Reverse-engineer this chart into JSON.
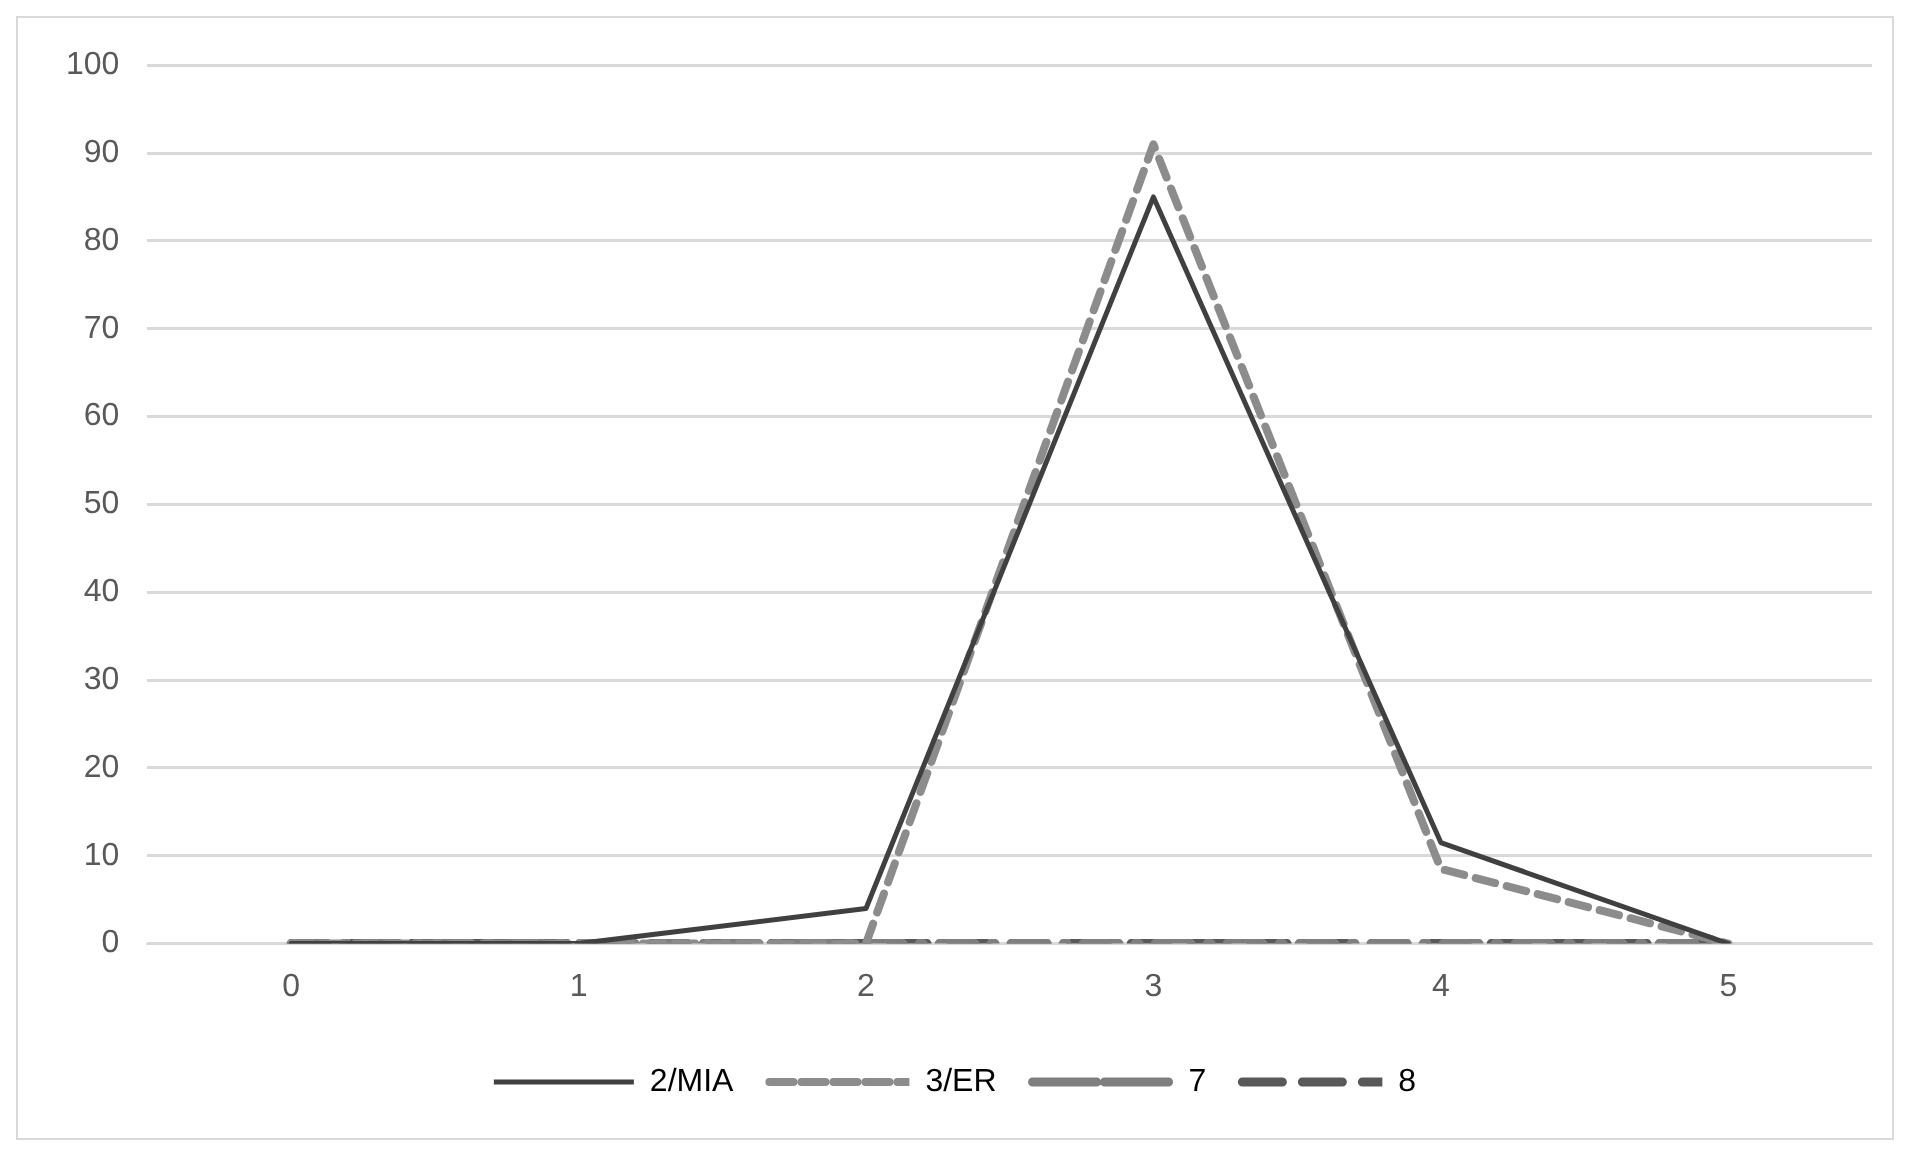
{
  "chart_data": {
    "type": "line",
    "categories": [
      "0",
      "1",
      "2",
      "3",
      "4",
      "5"
    ],
    "series": [
      {
        "name": "2/MIA",
        "color": "#404040",
        "line_style": "solid",
        "values": [
          0,
          0,
          4,
          85,
          11.5,
          0
        ]
      },
      {
        "name": "3/ER",
        "color": "#8c8c8c",
        "line_style": "dashed",
        "values": [
          0,
          0,
          0,
          91,
          8.5,
          0
        ]
      },
      {
        "name": "7",
        "color": "#7f7f7f",
        "line_style": "dashdot",
        "values": [
          0,
          0,
          0,
          0,
          0,
          0
        ]
      },
      {
        "name": "8",
        "color": "#595959",
        "line_style": "longdash",
        "values": [
          0,
          0,
          0,
          0,
          0,
          0
        ]
      }
    ],
    "ylim": [
      0,
      100
    ],
    "yticks": [
      0,
      10,
      20,
      30,
      40,
      50,
      60,
      70,
      80,
      90,
      100
    ],
    "grid": "y",
    "legend": "bottom",
    "marker": "none"
  }
}
